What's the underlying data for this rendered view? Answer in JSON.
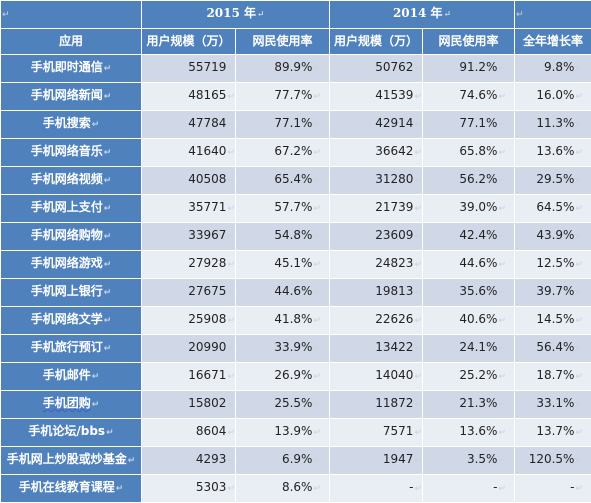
{
  "table": {
    "year_headers": [
      "2015 年",
      "2014 年"
    ],
    "columns": {
      "app": "应用",
      "users_2015": "用户规模（万）",
      "rate_2015": "网民使用率",
      "users_2014": "用户规模（万）",
      "rate_2014": "网民使用率",
      "growth": "全年增长率"
    },
    "para_mark": "↵",
    "rows": [
      {
        "app": "手机即时通信",
        "users_2015": "55719",
        "rate_2015": "89.9%",
        "users_2014": "50762",
        "rate_2014": "91.2%",
        "growth": "9.8%"
      },
      {
        "app": "手机网络新闻",
        "users_2015": "48165",
        "rate_2015": "77.7%",
        "users_2014": "41539",
        "rate_2014": "74.6%",
        "growth": "16.0%"
      },
      {
        "app": "手机搜索",
        "users_2015": "47784",
        "rate_2015": "77.1%",
        "users_2014": "42914",
        "rate_2014": "77.1%",
        "growth": "11.3%"
      },
      {
        "app": "手机网络音乐",
        "users_2015": "41640",
        "rate_2015": "67.2%",
        "users_2014": "36642",
        "rate_2014": "65.8%",
        "growth": "13.6%"
      },
      {
        "app": "手机网络视频",
        "users_2015": "40508",
        "rate_2015": "65.4%",
        "users_2014": "31280",
        "rate_2014": "56.2%",
        "growth": "29.5%"
      },
      {
        "app": "手机网上支付",
        "users_2015": "35771",
        "rate_2015": "57.7%",
        "users_2014": "21739",
        "rate_2014": "39.0%",
        "growth": "64.5%"
      },
      {
        "app": "手机网络购物",
        "users_2015": "33967",
        "rate_2015": "54.8%",
        "users_2014": "23609",
        "rate_2014": "42.4%",
        "growth": "43.9%"
      },
      {
        "app": "手机网络游戏",
        "users_2015": "27928",
        "rate_2015": "45.1%",
        "users_2014": "24823",
        "rate_2014": "44.6%",
        "growth": "12.5%"
      },
      {
        "app": "手机网上银行",
        "users_2015": "27675",
        "rate_2015": "44.6%",
        "users_2014": "19813",
        "rate_2014": "35.6%",
        "growth": "39.7%"
      },
      {
        "app": "手机网络文学",
        "users_2015": "25908",
        "rate_2015": "41.8%",
        "users_2014": "22626",
        "rate_2014": "40.6%",
        "growth": "14.5%"
      },
      {
        "app": "手机旅行预订",
        "users_2015": "20990",
        "rate_2015": "33.9%",
        "users_2014": "13422",
        "rate_2014": "24.1%",
        "growth": "56.4%"
      },
      {
        "app": "手机邮件",
        "users_2015": "16671",
        "rate_2015": "26.9%",
        "users_2014": "14040",
        "rate_2014": "25.2%",
        "growth": "18.7%"
      },
      {
        "app": "手机团购",
        "users_2015": "15802",
        "rate_2015": "25.5%",
        "users_2014": "11872",
        "rate_2014": "21.3%",
        "growth": "33.1%"
      },
      {
        "app": "手机论坛/bbs",
        "users_2015": "8604",
        "rate_2015": "13.9%",
        "users_2014": "7571",
        "rate_2014": "13.6%",
        "growth": "13.7%"
      },
      {
        "app": "手机网上炒股或炒基金",
        "users_2015": "4293",
        "rate_2015": "6.9%",
        "users_2014": "1947",
        "rate_2014": "3.5%",
        "growth": "120.5%"
      },
      {
        "app": "手机在线教育课程",
        "users_2015": "5303",
        "rate_2015": "8.6%",
        "users_2014": "-",
        "rate_2014": "-",
        "growth": "-"
      }
    ]
  }
}
